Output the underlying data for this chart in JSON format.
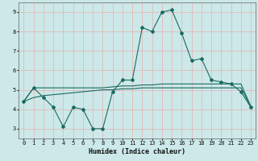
{
  "title": "",
  "xlabel": "Humidex (Indice chaleur)",
  "ylabel": "",
  "bg_color": "#cce8e8",
  "grid_color": "#e8b0b0",
  "line_color": "#1a6b60",
  "xlim": [
    -0.5,
    23.5
  ],
  "ylim": [
    2.5,
    9.5
  ],
  "yticks": [
    3,
    4,
    5,
    6,
    7,
    8,
    9
  ],
  "xticks": [
    0,
    1,
    2,
    3,
    4,
    5,
    6,
    7,
    8,
    9,
    10,
    11,
    12,
    13,
    14,
    15,
    16,
    17,
    18,
    19,
    20,
    21,
    22,
    23
  ],
  "line1_x": [
    0,
    1,
    2,
    3,
    4,
    5,
    6,
    7,
    8,
    9,
    10,
    11,
    12,
    13,
    14,
    15,
    16,
    17,
    18,
    19,
    20,
    21,
    22,
    23
  ],
  "line1_y": [
    4.4,
    5.1,
    4.6,
    4.1,
    3.1,
    4.1,
    4.0,
    3.0,
    3.0,
    4.9,
    5.5,
    5.5,
    8.2,
    8.0,
    9.0,
    9.1,
    7.9,
    6.5,
    6.6,
    5.5,
    5.4,
    5.3,
    4.9,
    4.1
  ],
  "line2_x": [
    0,
    1,
    2,
    3,
    4,
    5,
    6,
    7,
    8,
    9,
    10,
    11,
    12,
    13,
    14,
    15,
    16,
    17,
    18,
    19,
    20,
    21,
    22,
    23
  ],
  "line2_y": [
    4.4,
    5.1,
    5.1,
    5.1,
    5.1,
    5.1,
    5.1,
    5.1,
    5.1,
    5.15,
    5.2,
    5.2,
    5.25,
    5.25,
    5.3,
    5.3,
    5.3,
    5.3,
    5.3,
    5.3,
    5.3,
    5.3,
    5.3,
    4.15
  ],
  "line3_x": [
    0,
    1,
    2,
    3,
    4,
    5,
    6,
    7,
    8,
    9,
    10,
    11,
    12,
    13,
    14,
    15,
    16,
    17,
    18,
    19,
    20,
    21,
    22,
    23
  ],
  "line3_y": [
    4.4,
    4.6,
    4.7,
    4.75,
    4.8,
    4.85,
    4.9,
    4.95,
    5.0,
    5.0,
    5.05,
    5.05,
    5.1,
    5.1,
    5.1,
    5.1,
    5.1,
    5.1,
    5.1,
    5.1,
    5.1,
    5.1,
    5.1,
    4.15
  ]
}
